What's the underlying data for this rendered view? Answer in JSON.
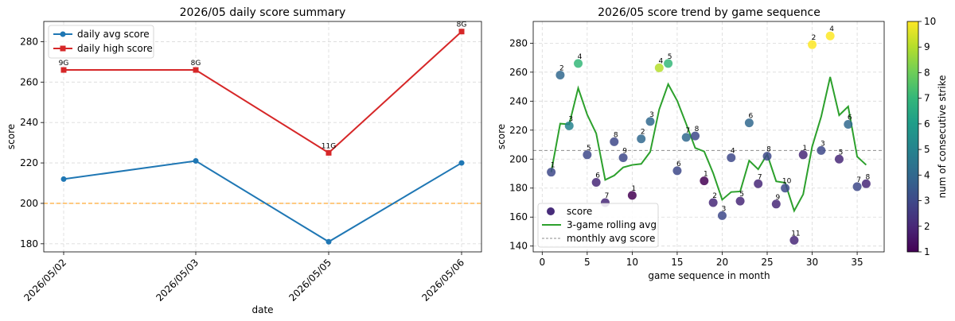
{
  "chart_data": [
    {
      "type": "line",
      "title": "2026/05 daily score summary",
      "xlabel": "date",
      "ylabel": "score",
      "categories": [
        "2026/05/02",
        "2026/05/03",
        "2026/05/05",
        "2026/05/06"
      ],
      "series": [
        {
          "name": "daily avg score",
          "values": [
            212,
            221,
            181,
            220
          ],
          "color": "#1f77b4",
          "marker": "circle"
        },
        {
          "name": "daily high score",
          "values": [
            266,
            266,
            225,
            285
          ],
          "color": "#d62728",
          "marker": "square",
          "labels": [
            "9G",
            "8G",
            "11G",
            "8G"
          ]
        }
      ],
      "reference_line": {
        "value": 200,
        "color": "#ff9f1c",
        "style": "dashed"
      },
      "ylim": [
        176,
        290
      ],
      "yticks": [
        180,
        200,
        220,
        240,
        260,
        280
      ],
      "grid": true,
      "legend": "top-left"
    },
    {
      "type": "scatter",
      "title": "2026/05 score trend by game sequence",
      "xlabel": "game sequence in month",
      "ylabel": "score",
      "xlim": [
        -1,
        38
      ],
      "ylim": [
        136,
        295
      ],
      "xticks": [
        0,
        5,
        10,
        15,
        20,
        25,
        30,
        35
      ],
      "yticks": [
        140,
        160,
        180,
        200,
        220,
        240,
        260,
        280
      ],
      "grid": true,
      "legend": "bottom-left",
      "legend_entries": [
        "score",
        "3-game rolling avg",
        "monthly avg score"
      ],
      "points": [
        {
          "x": 1,
          "y": 191,
          "strike": 3,
          "label": "1"
        },
        {
          "x": 2,
          "y": 258,
          "strike": 4,
          "label": "2"
        },
        {
          "x": 3,
          "y": 223,
          "strike": 5,
          "label": "3"
        },
        {
          "x": 4,
          "y": 266,
          "strike": 7,
          "label": "4"
        },
        {
          "x": 5,
          "y": 203,
          "strike": 3,
          "label": "5"
        },
        {
          "x": 6,
          "y": 184,
          "strike": 2,
          "label": "6"
        },
        {
          "x": 7,
          "y": 170,
          "strike": 2,
          "label": "7"
        },
        {
          "x": 8,
          "y": 212,
          "strike": 3,
          "label": "8"
        },
        {
          "x": 9,
          "y": 201,
          "strike": 3,
          "label": "9"
        },
        {
          "x": 10,
          "y": 175,
          "strike": 1,
          "label": "1"
        },
        {
          "x": 11,
          "y": 214,
          "strike": 4,
          "label": "2"
        },
        {
          "x": 12,
          "y": 226,
          "strike": 4,
          "label": "3"
        },
        {
          "x": 13,
          "y": 263,
          "strike": 9,
          "label": "4"
        },
        {
          "x": 14,
          "y": 266,
          "strike": 7,
          "label": "5"
        },
        {
          "x": 15,
          "y": 192,
          "strike": 3,
          "label": "6"
        },
        {
          "x": 16,
          "y": 215,
          "strike": 4,
          "label": "7"
        },
        {
          "x": 17,
          "y": 216,
          "strike": 3,
          "label": "8"
        },
        {
          "x": 18,
          "y": 185,
          "strike": 1,
          "label": "1"
        },
        {
          "x": 19,
          "y": 170,
          "strike": 2,
          "label": "2"
        },
        {
          "x": 20,
          "y": 161,
          "strike": 3,
          "label": "3"
        },
        {
          "x": 21,
          "y": 201,
          "strike": 3,
          "label": "4"
        },
        {
          "x": 22,
          "y": 171,
          "strike": 2,
          "label": "5"
        },
        {
          "x": 23,
          "y": 225,
          "strike": 4,
          "label": "6"
        },
        {
          "x": 24,
          "y": 183,
          "strike": 2,
          "label": "7"
        },
        {
          "x": 25,
          "y": 202,
          "strike": 3,
          "label": "8"
        },
        {
          "x": 26,
          "y": 169,
          "strike": 2,
          "label": "9"
        },
        {
          "x": 27,
          "y": 180,
          "strike": 3,
          "label": "10"
        },
        {
          "x": 28,
          "y": 144,
          "strike": 2,
          "label": "11"
        },
        {
          "x": 29,
          "y": 203,
          "strike": 2,
          "label": "1"
        },
        {
          "x": 30,
          "y": 279,
          "strike": 10,
          "label": "2"
        },
        {
          "x": 31,
          "y": 206,
          "strike": 3,
          "label": "3"
        },
        {
          "x": 32,
          "y": 285,
          "strike": 10,
          "label": "4"
        },
        {
          "x": 33,
          "y": 200,
          "strike": 2,
          "label": "5"
        },
        {
          "x": 34,
          "y": 224,
          "strike": 4,
          "label": "6"
        },
        {
          "x": 35,
          "y": 181,
          "strike": 3,
          "label": "7"
        },
        {
          "x": 36,
          "y": 183,
          "strike": 2,
          "label": "8"
        }
      ],
      "rolling_avg": {
        "x": [
          1,
          2,
          3,
          4,
          5,
          6,
          7,
          8,
          9,
          10,
          11,
          12,
          13,
          14,
          15,
          16,
          17,
          18,
          19,
          20,
          21,
          22,
          23,
          24,
          25,
          26,
          27,
          28,
          29,
          30,
          31,
          32,
          33,
          34,
          35,
          36
        ],
        "y": [
          191,
          224.5,
          224,
          249,
          230.7,
          217.7,
          185.7,
          188.7,
          194.3,
          196,
          196.7,
          205,
          234.3,
          251.7,
          240.3,
          224.3,
          207.7,
          205.3,
          190.3,
          172,
          177.3,
          177.7,
          199,
          193,
          203.3,
          184.7,
          183.7,
          164.3,
          175.7,
          208.7,
          229.3,
          256.7,
          230.3,
          236.3,
          201.7,
          196
        ],
        "color": "#2ca02c"
      },
      "monthly_avg": {
        "value": 206,
        "color": "#8c8c8c",
        "style": "dashed"
      },
      "colorbar": {
        "label": "num of consecutive strike",
        "min": 1,
        "max": 10,
        "ticks": [
          1,
          2,
          3,
          4,
          5,
          6,
          7,
          8,
          9,
          10
        ],
        "colormap": "viridis"
      }
    }
  ]
}
